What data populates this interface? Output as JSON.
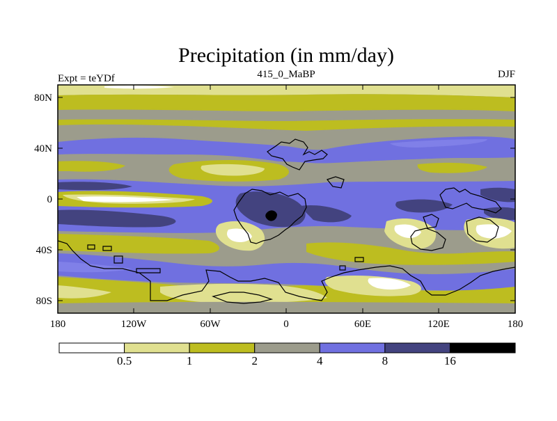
{
  "title": "Precipitation (in mm/day)",
  "subtitle_left": "Expt = teYDf",
  "subtitle_center": "415_0_MaBP",
  "subtitle_right": "DJF",
  "y_ticks": [
    "80N",
    "40N",
    "0",
    "40S",
    "80S"
  ],
  "x_ticks": [
    "180",
    "120W",
    "60W",
    "0",
    "60E",
    "120E",
    "180"
  ],
  "legend": {
    "labels": [
      "0.5",
      "1",
      "2",
      "4",
      "8",
      "16"
    ],
    "colors": [
      "#ffffff",
      "#e0e090",
      "#bdbd20",
      "#9c9c8c",
      "#7070e0",
      "#43437f",
      "#000000"
    ]
  },
  "chart_data": {
    "type": "heatmap",
    "title": "Precipitation (in mm/day)",
    "units": "mm/day",
    "season": "DJF",
    "experiment": "teYDf",
    "period": "415_0_MaBP",
    "xlim": [
      -180,
      180
    ],
    "ylim": [
      -90,
      90
    ],
    "contour_levels": [
      0.5,
      1,
      2,
      4,
      8,
      16
    ]
  }
}
